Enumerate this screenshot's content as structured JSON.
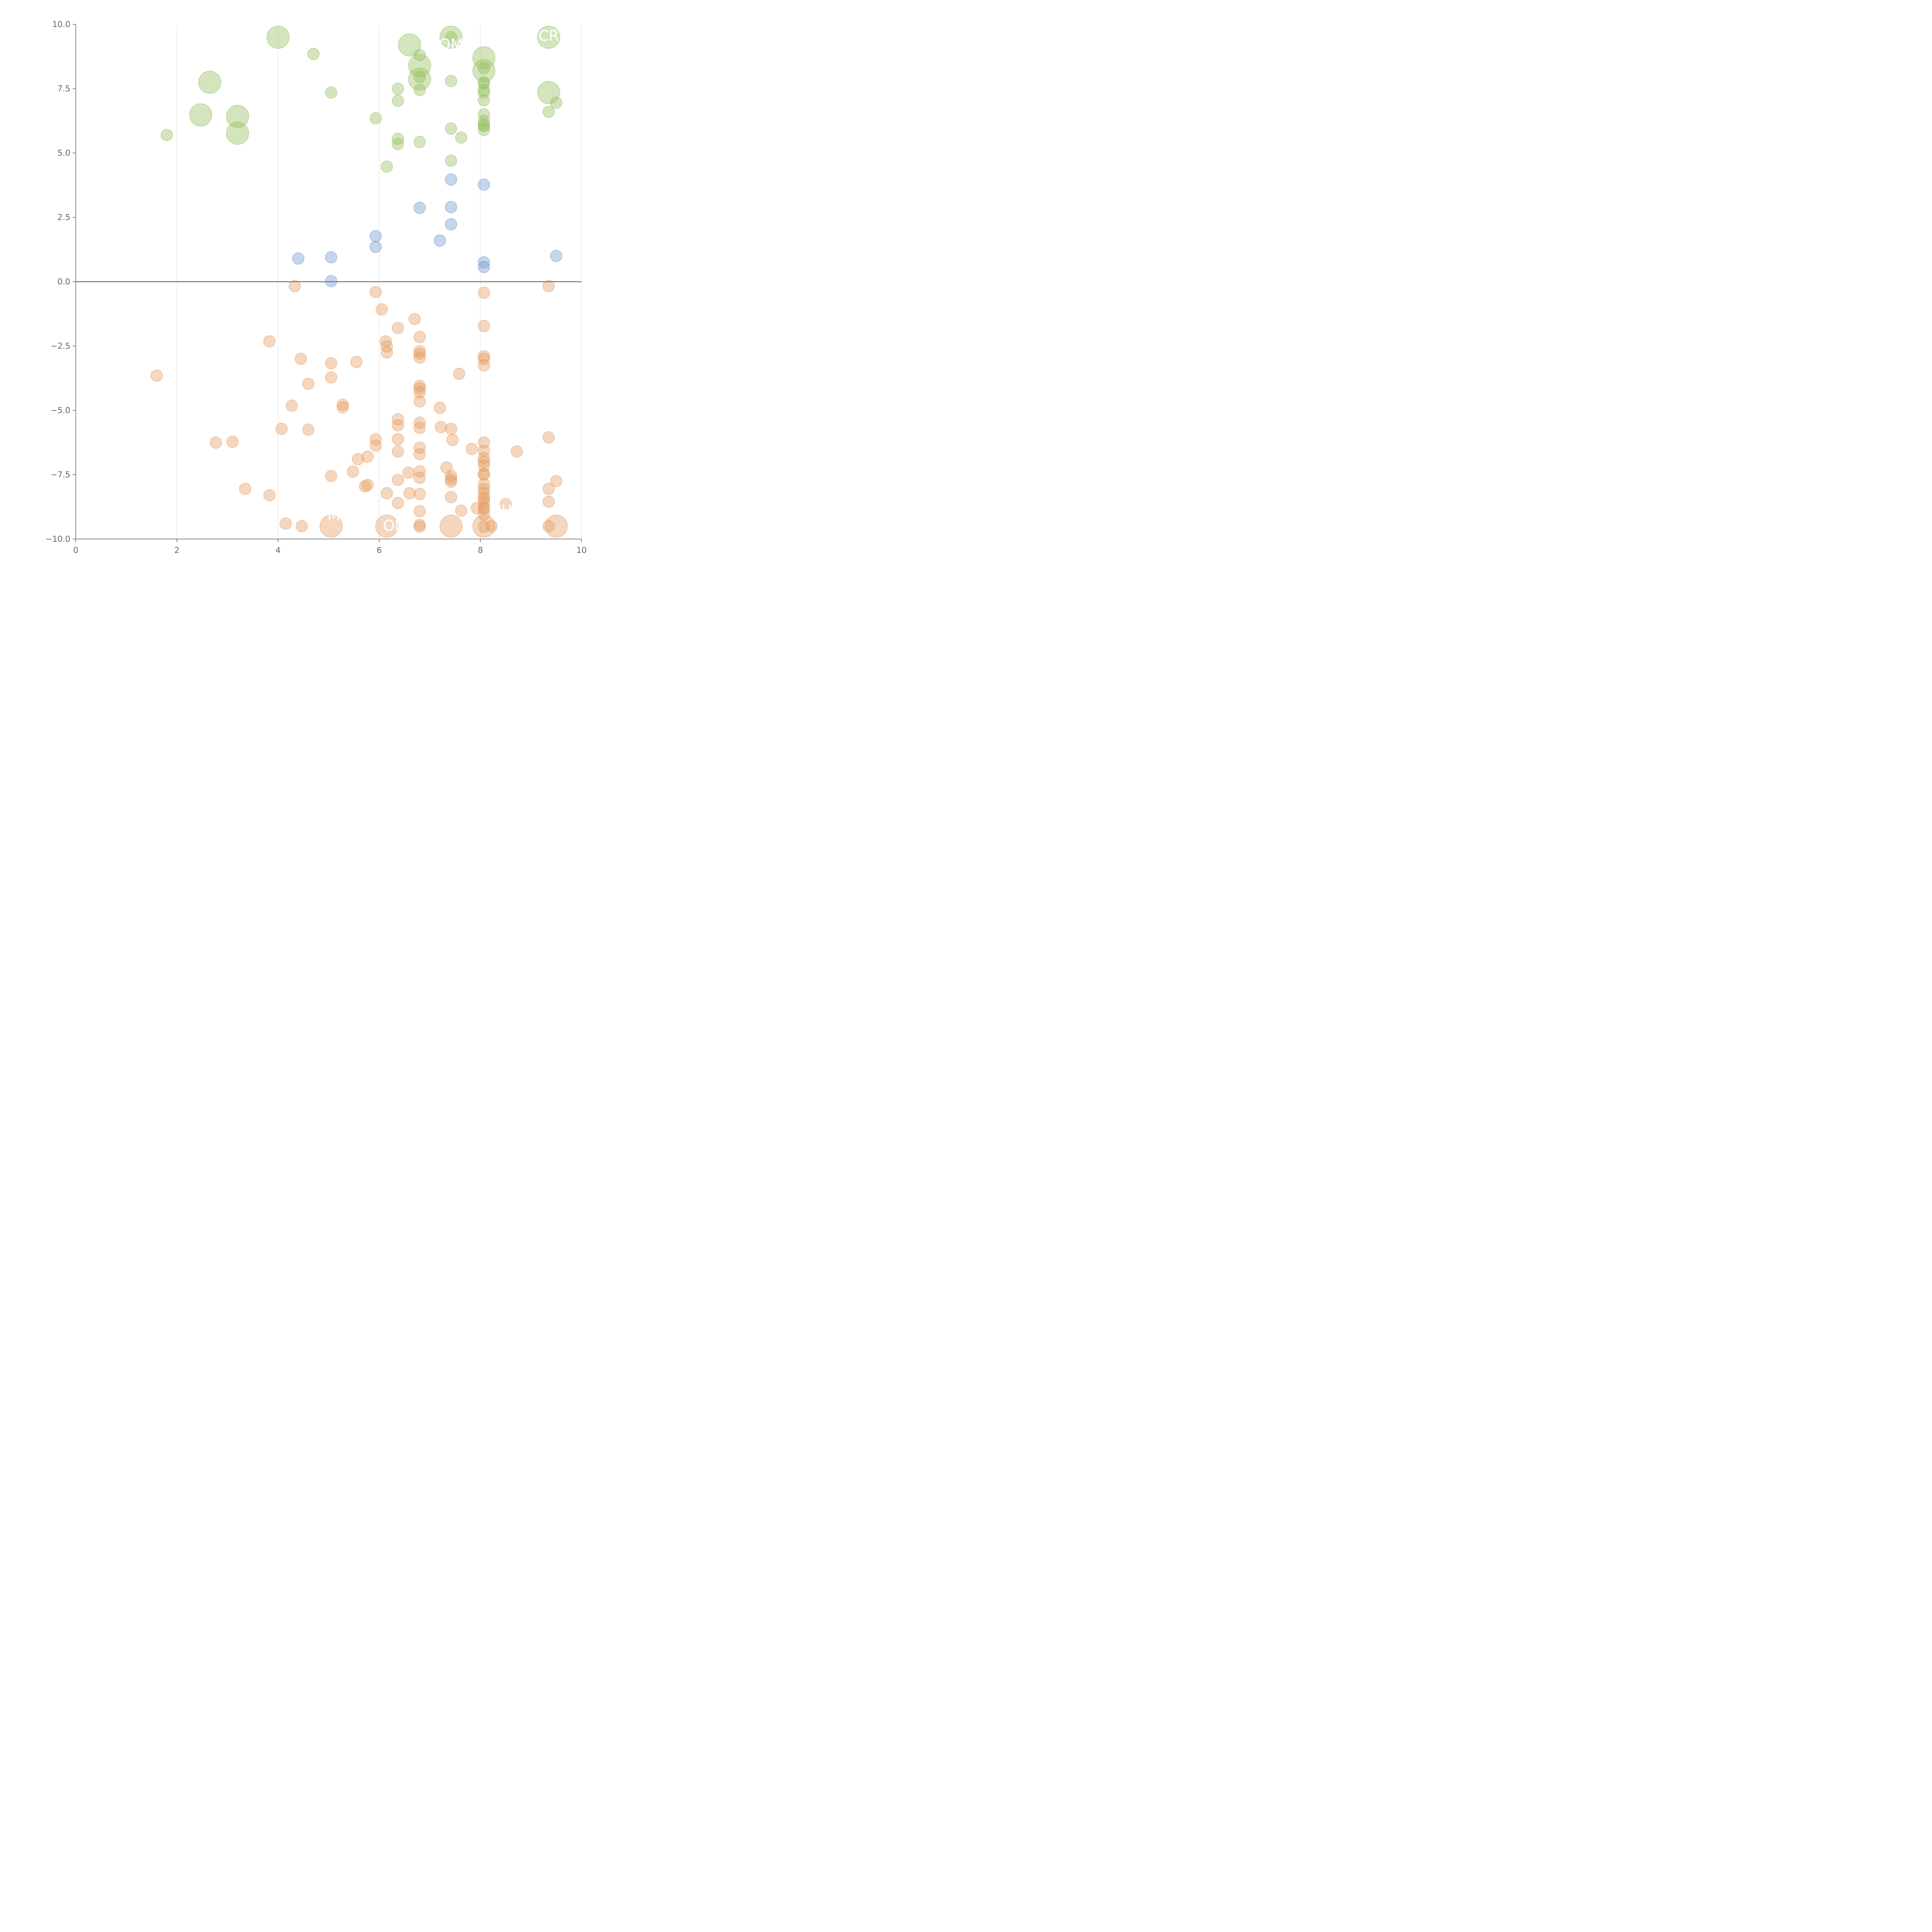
{
  "chart_data": {
    "type": "scatter",
    "title": "",
    "xlabel": "",
    "ylabel": "",
    "xlim": [
      0,
      10
    ],
    "ylim": [
      -10,
      10
    ],
    "x_ticks": [
      "0",
      "2",
      "4",
      "6",
      "8",
      "10"
    ],
    "y_ticks": [
      "−10.0",
      "−7.5",
      "−5.0",
      "−2.5",
      "0.0",
      "2.5",
      "5.0",
      "7.5",
      "10.0"
    ],
    "x_tick_values": [
      0,
      2,
      4,
      6,
      8,
      10
    ],
    "y_tick_values": [
      -10,
      -7.5,
      -5,
      -2.5,
      0,
      2.5,
      5,
      7.5,
      10
    ],
    "grid": "vertical",
    "reference_line_y": 0,
    "colors": {
      "green": "#93bf5c",
      "blue": "#6e95d0",
      "orange": "#e69a5e",
      "axis": "#666666",
      "grid": "#dddddd",
      "zero_line": "#777777"
    },
    "series": [
      {
        "color": "green",
        "points": [
          [
            4.0,
            9.5,
            2
          ],
          [
            4.7,
            8.85,
            1
          ],
          [
            2.65,
            7.75,
            2
          ],
          [
            5.05,
            7.35,
            1
          ],
          [
            2.47,
            6.48,
            2
          ],
          [
            3.2,
            6.42,
            2
          ],
          [
            3.2,
            5.77,
            2
          ],
          [
            1.8,
            5.7,
            1
          ],
          [
            5.93,
            6.35,
            1
          ],
          [
            6.6,
            9.2,
            2
          ],
          [
            7.42,
            9.5,
            2
          ],
          [
            7.42,
            9.5,
            1
          ],
          [
            6.8,
            8.8,
            1
          ],
          [
            6.8,
            8.4,
            2
          ],
          [
            6.8,
            7.87,
            2
          ],
          [
            6.8,
            7.95,
            1
          ],
          [
            6.8,
            7.45,
            1
          ],
          [
            6.37,
            7.5,
            1
          ],
          [
            6.37,
            7.03,
            1
          ],
          [
            7.42,
            7.8,
            1
          ],
          [
            8.07,
            8.7,
            2
          ],
          [
            8.07,
            8.2,
            2
          ],
          [
            8.07,
            8.3,
            1
          ],
          [
            8.07,
            7.75,
            1
          ],
          [
            8.07,
            7.7,
            1
          ],
          [
            8.07,
            7.45,
            1
          ],
          [
            8.07,
            7.35,
            1
          ],
          [
            8.07,
            7.05,
            1
          ],
          [
            8.07,
            6.5,
            1
          ],
          [
            8.07,
            6.25,
            1
          ],
          [
            8.07,
            6.1,
            1
          ],
          [
            8.07,
            6.05,
            1
          ],
          [
            8.07,
            5.9,
            1
          ],
          [
            9.35,
            9.5,
            2
          ],
          [
            9.35,
            7.35,
            2
          ],
          [
            9.5,
            6.95,
            1
          ],
          [
            9.35,
            6.6,
            1
          ],
          [
            7.42,
            5.95,
            1
          ],
          [
            7.62,
            5.6,
            1
          ],
          [
            6.8,
            5.43,
            1
          ],
          [
            6.37,
            5.55,
            1
          ],
          [
            6.37,
            5.35,
            1
          ],
          [
            7.42,
            4.7,
            1
          ],
          [
            6.15,
            4.47,
            1
          ]
        ]
      },
      {
        "color": "blue",
        "points": [
          [
            7.42,
            3.97,
            1
          ],
          [
            8.07,
            3.77,
            1
          ],
          [
            6.8,
            2.87,
            1
          ],
          [
            7.42,
            2.9,
            1
          ],
          [
            7.42,
            2.23,
            1
          ],
          [
            5.93,
            1.77,
            1
          ],
          [
            5.93,
            1.35,
            1
          ],
          [
            7.2,
            1.6,
            1
          ],
          [
            4.4,
            0.9,
            1
          ],
          [
            5.05,
            0.95,
            1
          ],
          [
            8.07,
            0.75,
            1
          ],
          [
            8.07,
            0.57,
            1
          ],
          [
            9.5,
            1.0,
            1
          ],
          [
            5.05,
            0.02,
            1
          ]
        ]
      },
      {
        "color": "orange",
        "points": [
          [
            4.33,
            -0.17,
            1
          ],
          [
            5.93,
            -0.4,
            1
          ],
          [
            6.05,
            -1.08,
            1
          ],
          [
            8.07,
            -0.43,
            1
          ],
          [
            9.35,
            -0.17,
            1
          ],
          [
            6.7,
            -1.45,
            1
          ],
          [
            6.37,
            -1.8,
            1
          ],
          [
            8.07,
            -1.72,
            1
          ],
          [
            6.8,
            -2.15,
            1
          ],
          [
            3.83,
            -2.32,
            1
          ],
          [
            6.13,
            -2.32,
            1
          ],
          [
            6.15,
            -2.52,
            1
          ],
          [
            6.15,
            -2.75,
            1
          ],
          [
            6.8,
            -2.7,
            1
          ],
          [
            6.8,
            -2.8,
            1
          ],
          [
            6.8,
            -2.95,
            1
          ],
          [
            4.45,
            -3.0,
            1
          ],
          [
            5.05,
            -3.17,
            1
          ],
          [
            5.55,
            -3.12,
            1
          ],
          [
            8.07,
            -2.9,
            1
          ],
          [
            8.07,
            -3.0,
            1
          ],
          [
            8.07,
            -3.25,
            1
          ],
          [
            1.6,
            -3.65,
            1
          ],
          [
            5.05,
            -3.72,
            1
          ],
          [
            7.58,
            -3.58,
            1
          ],
          [
            4.6,
            -3.97,
            1
          ],
          [
            6.8,
            -4.05,
            1
          ],
          [
            6.8,
            -4.15,
            1
          ],
          [
            6.8,
            -4.3,
            1
          ],
          [
            6.8,
            -4.65,
            1
          ],
          [
            4.27,
            -4.82,
            1
          ],
          [
            5.28,
            -4.78,
            1
          ],
          [
            5.28,
            -4.88,
            1
          ],
          [
            7.2,
            -4.9,
            1
          ],
          [
            6.37,
            -5.35,
            1
          ],
          [
            6.37,
            -5.58,
            1
          ],
          [
            6.8,
            -5.48,
            1
          ],
          [
            6.8,
            -5.68,
            1
          ],
          [
            7.22,
            -5.65,
            1
          ],
          [
            7.42,
            -5.72,
            1
          ],
          [
            4.07,
            -5.72,
            1
          ],
          [
            4.6,
            -5.75,
            1
          ],
          [
            2.77,
            -6.25,
            1
          ],
          [
            3.1,
            -6.22,
            1
          ],
          [
            5.93,
            -6.12,
            1
          ],
          [
            5.93,
            -6.37,
            1
          ],
          [
            6.37,
            -6.12,
            1
          ],
          [
            7.45,
            -6.15,
            1
          ],
          [
            8.07,
            -6.25,
            1
          ],
          [
            9.35,
            -6.05,
            1
          ],
          [
            6.37,
            -6.6,
            1
          ],
          [
            6.8,
            -6.45,
            1
          ],
          [
            6.8,
            -6.7,
            1
          ],
          [
            7.83,
            -6.5,
            1
          ],
          [
            8.72,
            -6.6,
            1
          ],
          [
            8.07,
            -6.57,
            1
          ],
          [
            8.07,
            -6.85,
            1
          ],
          [
            8.07,
            -7.0,
            1
          ],
          [
            8.07,
            -7.15,
            1
          ],
          [
            5.58,
            -6.9,
            1
          ],
          [
            5.77,
            -6.8,
            1
          ],
          [
            5.48,
            -7.38,
            1
          ],
          [
            5.05,
            -7.55,
            1
          ],
          [
            6.58,
            -7.42,
            1
          ],
          [
            6.8,
            -7.37,
            1
          ],
          [
            6.8,
            -7.62,
            1
          ],
          [
            7.33,
            -7.22,
            1
          ],
          [
            7.42,
            -7.55,
            1
          ],
          [
            7.42,
            -7.67,
            1
          ],
          [
            7.42,
            -7.77,
            1
          ],
          [
            8.07,
            -7.47,
            1
          ],
          [
            8.07,
            -7.5,
            1
          ],
          [
            6.37,
            -7.7,
            1
          ],
          [
            5.72,
            -7.95,
            1
          ],
          [
            5.77,
            -7.9,
            1
          ],
          [
            3.35,
            -8.05,
            1
          ],
          [
            3.83,
            -8.3,
            1
          ],
          [
            6.15,
            -8.22,
            1
          ],
          [
            6.6,
            -8.22,
            1
          ],
          [
            6.8,
            -8.25,
            1
          ],
          [
            7.42,
            -8.37,
            1
          ],
          [
            8.07,
            -7.87,
            1
          ],
          [
            8.07,
            -8.05,
            1
          ],
          [
            8.07,
            -8.2,
            1
          ],
          [
            8.07,
            -8.37,
            1
          ],
          [
            8.07,
            -8.45,
            1
          ],
          [
            8.07,
            -8.6,
            1
          ],
          [
            9.35,
            -8.05,
            1
          ],
          [
            9.5,
            -7.75,
            1
          ],
          [
            6.37,
            -8.6,
            1
          ],
          [
            7.62,
            -8.9,
            1
          ],
          [
            6.8,
            -8.92,
            1
          ],
          [
            7.93,
            -8.8,
            1
          ],
          [
            8.07,
            -8.8,
            1
          ],
          [
            8.07,
            -8.82,
            1
          ],
          [
            8.07,
            -9.05,
            1
          ],
          [
            8.5,
            -8.65,
            1
          ],
          [
            9.35,
            -8.55,
            1
          ],
          [
            4.15,
            -9.4,
            1
          ],
          [
            4.47,
            -9.5,
            1
          ],
          [
            6.8,
            -9.45,
            1
          ],
          [
            6.8,
            -9.52,
            1
          ],
          [
            8.07,
            -9.52,
            1
          ],
          [
            8.22,
            -9.5,
            1
          ],
          [
            9.35,
            -9.5,
            1
          ],
          [
            5.05,
            -9.5,
            2
          ],
          [
            6.15,
            -9.5,
            2
          ],
          [
            7.42,
            -9.5,
            2
          ],
          [
            8.07,
            -9.5,
            2
          ],
          [
            9.5,
            -9.5,
            2
          ]
        ]
      }
    ],
    "annotations": [
      {
        "text": "OM",
        "x": 7.42,
        "y": 9.18
      },
      {
        "text": "CR",
        "x": 9.35,
        "y": 9.52
      },
      {
        "text": "CH",
        "x": 8.42,
        "y": -8.92
      },
      {
        "text": "M",
        "x": 5.1,
        "y": -9.12
      },
      {
        "text": "ON",
        "x": 6.3,
        "y": -9.52
      }
    ]
  }
}
